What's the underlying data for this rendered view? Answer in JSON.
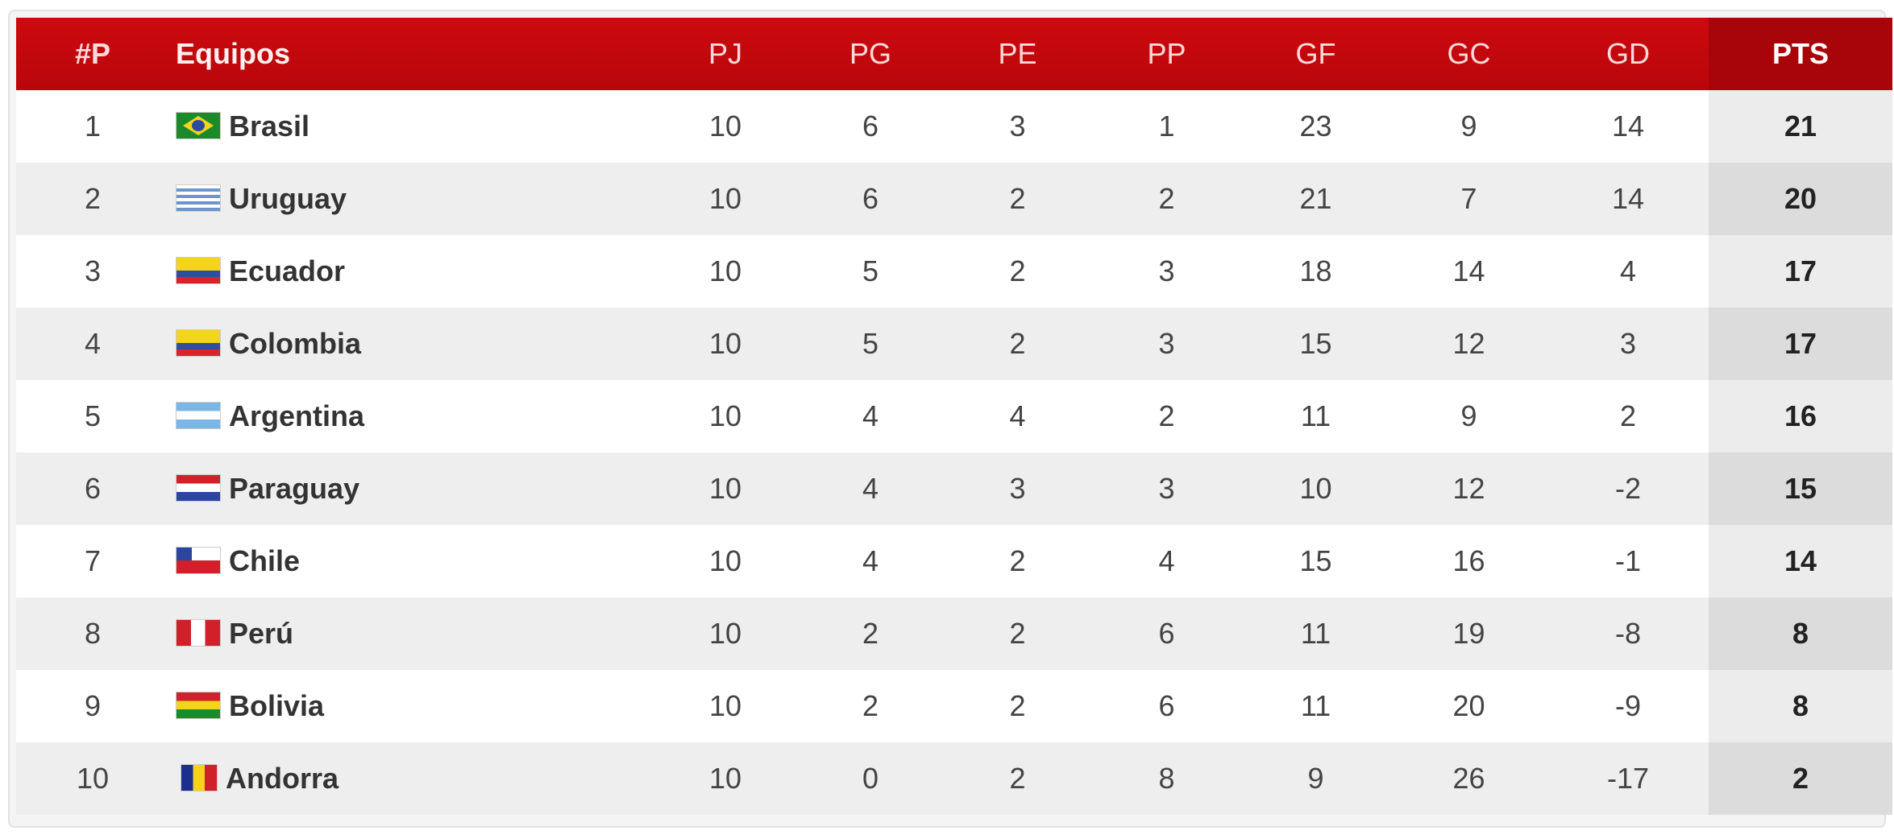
{
  "headers": {
    "pos": "#P",
    "team": "Equipos",
    "pj": "PJ",
    "pg": "PG",
    "pe": "PE",
    "pp": "PP",
    "gf": "GF",
    "gc": "GC",
    "gd": "GD",
    "pts": "PTS"
  },
  "colors": {
    "header": "#c4080d",
    "pts_header": "#a8050a"
  },
  "rows": [
    {
      "pos": "1",
      "team": "Brasil",
      "flag": "br",
      "pj": "10",
      "pg": "6",
      "pe": "3",
      "pp": "1",
      "gf": "23",
      "gc": "9",
      "gd": "14",
      "pts": "21"
    },
    {
      "pos": "2",
      "team": "Uruguay",
      "flag": "uy",
      "pj": "10",
      "pg": "6",
      "pe": "2",
      "pp": "2",
      "gf": "21",
      "gc": "7",
      "gd": "14",
      "pts": "20"
    },
    {
      "pos": "3",
      "team": "Ecuador",
      "flag": "ec",
      "pj": "10",
      "pg": "5",
      "pe": "2",
      "pp": "3",
      "gf": "18",
      "gc": "14",
      "gd": "4",
      "pts": "17"
    },
    {
      "pos": "4",
      "team": "Colombia",
      "flag": "co",
      "pj": "10",
      "pg": "5",
      "pe": "2",
      "pp": "3",
      "gf": "15",
      "gc": "12",
      "gd": "3",
      "pts": "17"
    },
    {
      "pos": "5",
      "team": "Argentina",
      "flag": "ar",
      "pj": "10",
      "pg": "4",
      "pe": "4",
      "pp": "2",
      "gf": "11",
      "gc": "9",
      "gd": "2",
      "pts": "16"
    },
    {
      "pos": "6",
      "team": "Paraguay",
      "flag": "py",
      "pj": "10",
      "pg": "4",
      "pe": "3",
      "pp": "3",
      "gf": "10",
      "gc": "12",
      "gd": "-2",
      "pts": "15"
    },
    {
      "pos": "7",
      "team": "Chile",
      "flag": "cl",
      "pj": "10",
      "pg": "4",
      "pe": "2",
      "pp": "4",
      "gf": "15",
      "gc": "16",
      "gd": "-1",
      "pts": "14"
    },
    {
      "pos": "8",
      "team": "Perú",
      "flag": "pe",
      "pj": "10",
      "pg": "2",
      "pe": "2",
      "pp": "6",
      "gf": "11",
      "gc": "19",
      "gd": "-8",
      "pts": "8"
    },
    {
      "pos": "9",
      "team": "Bolivia",
      "flag": "bo",
      "pj": "10",
      "pg": "2",
      "pe": "2",
      "pp": "6",
      "gf": "11",
      "gc": "20",
      "gd": "-9",
      "pts": "8"
    },
    {
      "pos": "10",
      "team": "Andorra",
      "flag": "ad",
      "pj": "10",
      "pg": "0",
      "pe": "2",
      "pp": "8",
      "gf": "9",
      "gc": "26",
      "gd": "-17",
      "pts": "2"
    }
  ]
}
